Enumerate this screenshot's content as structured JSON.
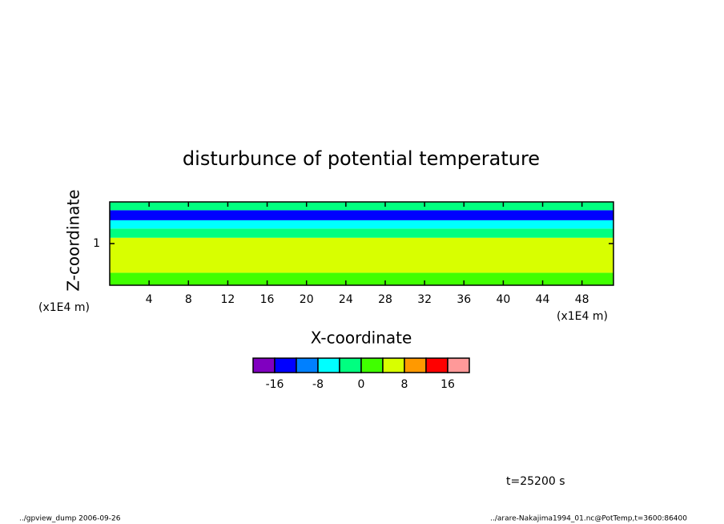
{
  "chart_data": {
    "type": "contour",
    "title": "disturbunce of potential temperature",
    "x_label": "X-coordinate",
    "y_label": "Z-coordinate",
    "x_unit": "(x1E4 m)",
    "y_unit": "(x1E4 m)",
    "xlim": [
      0,
      51.2
    ],
    "xticks": [
      4,
      8,
      12,
      16,
      20,
      24,
      28,
      32,
      36,
      40,
      44,
      48
    ],
    "ylim": [
      0.5,
      1.5
    ],
    "yticks": [
      1
    ],
    "field": {
      "z": [
        0.5,
        0.65,
        1.07,
        1.18,
        1.28,
        1.4,
        1.5
      ],
      "values": [
        2,
        6,
        -2,
        -6,
        -13,
        -2
      ]
    },
    "colorbar": {
      "levels": [
        -20,
        -16,
        -12,
        -8,
        -4,
        0,
        4,
        8,
        12,
        16,
        20
      ],
      "colors": [
        "#8000c0",
        "#0000ff",
        "#0080ff",
        "#00ffff",
        "#00ff80",
        "#40ff00",
        "#d8ff00",
        "#ff9900",
        "#ff0000",
        "#ff9999"
      ],
      "ticks": [
        -16,
        -8,
        0,
        8,
        16
      ]
    },
    "time_label": "t=25200 s",
    "footer_left": "../gpview_dump  2006-09-26",
    "footer_right": "../arare-Nakajima1994_01.nc@PotTemp,t=3600:86400"
  }
}
